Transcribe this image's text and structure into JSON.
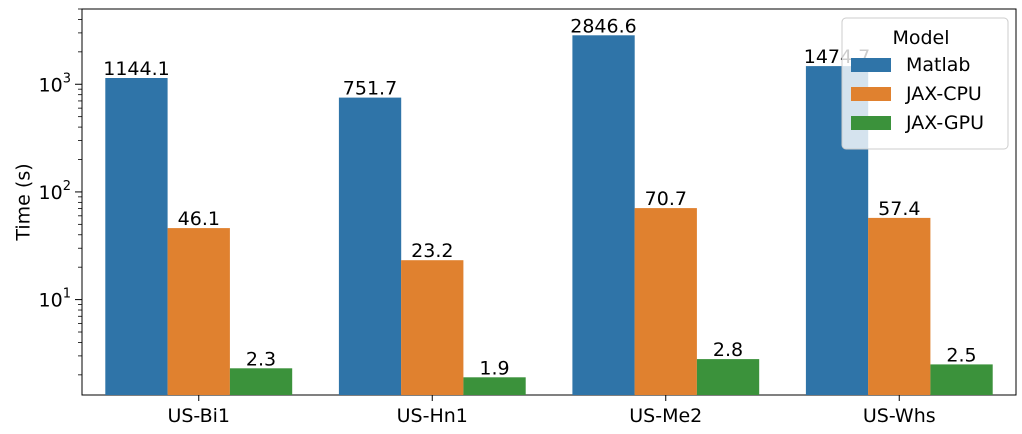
{
  "chart_data": {
    "type": "bar",
    "title": "",
    "xlabel": "",
    "ylabel": "Time (s)",
    "yscale": "log",
    "ylim": [
      1.3,
      5000
    ],
    "grid": false,
    "categories": [
      "US-Bi1",
      "US-Hn1",
      "US-Me2",
      "US-Whs"
    ],
    "series": [
      {
        "name": "Matlab",
        "color": "#2f74a8",
        "values": [
          1144.1,
          751.7,
          2846.6,
          1474.7
        ],
        "labels": [
          "1144.1",
          "751.7",
          "2846.6",
          "1474.7"
        ]
      },
      {
        "name": "JAX-CPU",
        "color": "#e0812f",
        "values": [
          46.1,
          23.2,
          70.7,
          57.4
        ],
        "labels": [
          "46.1",
          "23.2",
          "70.7",
          "57.4"
        ]
      },
      {
        "name": "JAX-GPU",
        "color": "#3b923b",
        "values": [
          2.3,
          1.9,
          2.8,
          2.5
        ],
        "labels": [
          "2.3",
          "1.9",
          "2.8",
          "2.5"
        ]
      }
    ],
    "major_ticks": [
      {
        "value": 10,
        "base": "10",
        "exp": "1"
      },
      {
        "value": 100,
        "base": "10",
        "exp": "2"
      },
      {
        "value": 1000,
        "base": "10",
        "exp": "3"
      }
    ],
    "legend": {
      "title": "Model",
      "position": "top-right"
    }
  }
}
